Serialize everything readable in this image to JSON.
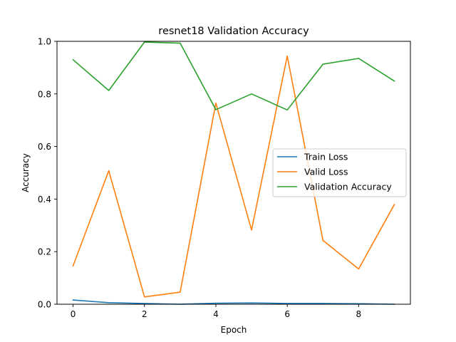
{
  "chart_data": {
    "type": "line",
    "title": "resnet18 Validation Accuracy",
    "xlabel": "Epoch",
    "ylabel": "Accuracy",
    "xlim": [
      -0.45,
      9.45
    ],
    "ylim": [
      0,
      1.0
    ],
    "xticks": [
      0,
      2,
      4,
      6,
      8
    ],
    "xtick_labels": [
      "0",
      "2",
      "4",
      "6",
      "8"
    ],
    "yticks": [
      0,
      0.2,
      0.4,
      0.6,
      0.8,
      1.0
    ],
    "ytick_labels": [
      "0.0",
      "0.2",
      "0.4",
      "0.6",
      "0.8",
      "1.0"
    ],
    "grid": false,
    "legend_position": "center-right",
    "x": [
      0,
      1,
      2,
      3,
      4,
      5,
      6,
      7,
      8,
      9
    ],
    "series": [
      {
        "name": "Train Loss",
        "color": "#1f77b4",
        "values": [
          0.016,
          0.006,
          0.003,
          0.0,
          0.004,
          0.005,
          0.003,
          0.003,
          0.002,
          0.0
        ]
      },
      {
        "name": "Valid Loss",
        "color": "#ff7f0e",
        "values": [
          0.146,
          0.508,
          0.028,
          0.046,
          0.765,
          0.282,
          0.944,
          0.243,
          0.134,
          0.379
        ]
      },
      {
        "name": "Validation Accuracy",
        "color": "#2ca02c",
        "values": [
          0.93,
          0.813,
          0.997,
          0.993,
          0.74,
          0.8,
          0.739,
          0.913,
          0.935,
          0.849
        ]
      }
    ]
  }
}
